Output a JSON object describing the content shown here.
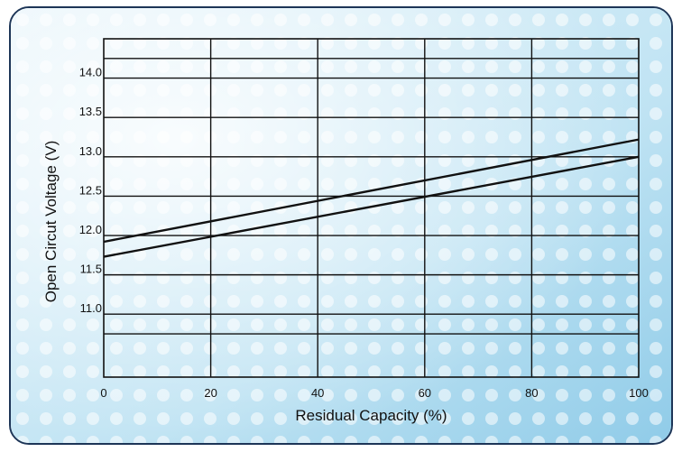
{
  "chart_data": {
    "type": "line",
    "xlabel": "Residual Capacity (%)",
    "ylabel": "Open Circut  Voltage (V)",
    "xlim": [
      0,
      100
    ],
    "ylim": [
      10.2,
      14.5
    ],
    "x_ticks": [
      "0",
      "20",
      "40",
      "60",
      "80",
      "100"
    ],
    "y_ticks": [
      "11.0",
      "11.5",
      "12.0",
      "12.5",
      "13.0",
      "13.5",
      "14.0"
    ],
    "grid": true,
    "series": [
      {
        "x": [
          0,
          100
        ],
        "y": [
          11.92,
          13.22
        ]
      },
      {
        "x": [
          0,
          100
        ],
        "y": [
          11.73,
          13.0
        ]
      }
    ]
  }
}
